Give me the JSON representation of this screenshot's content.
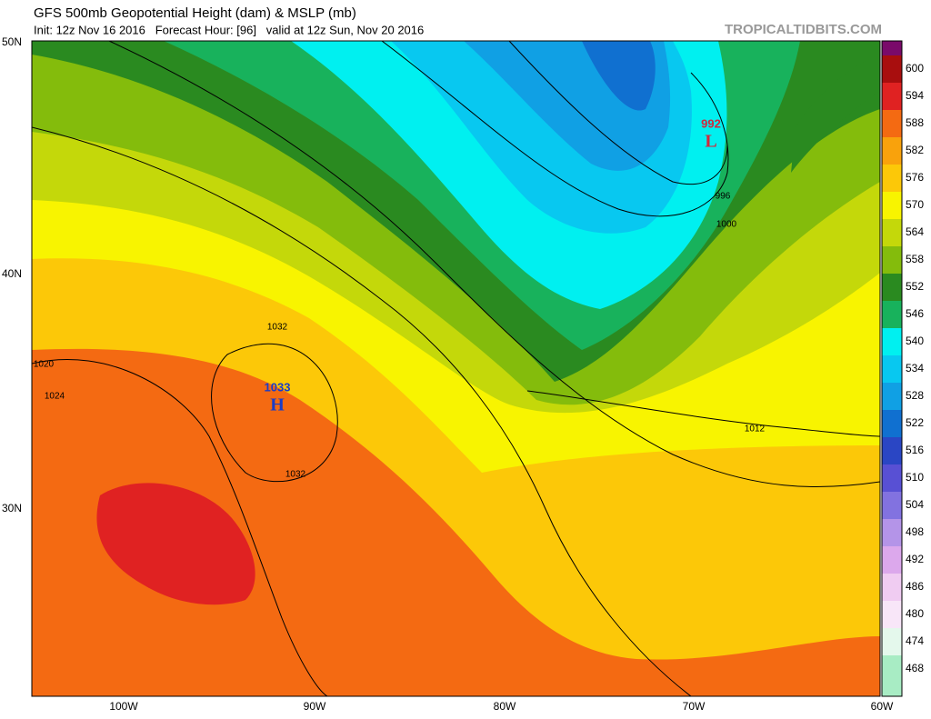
{
  "header": {
    "title": "GFS 500mb Geopotential Height (dam) & MSLP (mb)",
    "subtitle": "Init: 12z Nov 16 2016   Forecast Hour: [96]   valid at 12z Sun, Nov 20 2016",
    "brand": "TROPICALTIDBITS.COM"
  },
  "axes": {
    "lat_labels": [
      "50N",
      "40N",
      "30N"
    ],
    "lon_labels": [
      "100W",
      "90W",
      "80W",
      "70W",
      "60W"
    ]
  },
  "colorbar": {
    "labels": [
      600,
      594,
      588,
      582,
      576,
      570,
      564,
      558,
      552,
      546,
      540,
      534,
      528,
      522,
      516,
      510,
      504,
      498,
      492,
      486,
      480,
      474,
      468
    ],
    "colors": [
      "#7a0a6a",
      "#a80e0e",
      "#e02222",
      "#f46a12",
      "#f9a20c",
      "#fcc808",
      "#f8f400",
      "#c4d80a",
      "#84bc0c",
      "#2a8a20",
      "#18b25c",
      "#00f0f0",
      "#08c8f0",
      "#10a0e4",
      "#1070d0",
      "#2a46c4",
      "#5850d4",
      "#8272e0",
      "#b494e8",
      "#dca8ec",
      "#f0ccf2",
      "#f8e6f8",
      "#e4f8ec",
      "#a8ecc4",
      "#a8ecc4"
    ]
  },
  "contour_labels": [
    "1032",
    "1020",
    "1024",
    "1032",
    "1012",
    "1000",
    "996"
  ],
  "pressure_centers": [
    {
      "value": "1033",
      "letter": "H"
    },
    {
      "value": "992",
      "letter": "L"
    }
  ]
}
